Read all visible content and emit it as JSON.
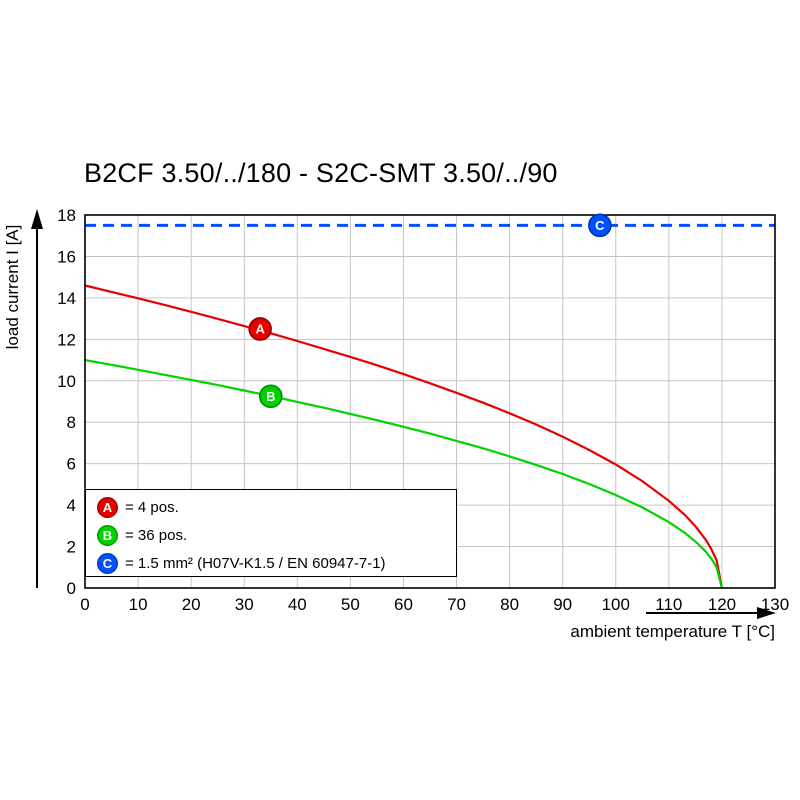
{
  "chart_data": {
    "type": "line",
    "title": "B2CF 3.50/../180 - S2C-SMT 3.50/../90",
    "xlabel": "ambient temperature T [°C]",
    "ylabel": "load current I [A]",
    "xlim": [
      0,
      130
    ],
    "ylim": [
      0,
      18
    ],
    "xtick_step": 10,
    "ytick_step": 2,
    "grid": true,
    "legend_position": "bottom-left",
    "series": [
      {
        "name": "A",
        "description": "4 pos.",
        "color": "#e60000",
        "style": "solid",
        "x": [
          0,
          5,
          10,
          15,
          20,
          25,
          30,
          35,
          40,
          45,
          50,
          55,
          60,
          65,
          70,
          75,
          80,
          85,
          90,
          95,
          100,
          105,
          110,
          113,
          115,
          117,
          118,
          119,
          120
        ],
        "y": [
          14.6,
          14.29,
          13.98,
          13.66,
          13.33,
          12.99,
          12.64,
          12.29,
          11.92,
          11.54,
          11.15,
          10.75,
          10.32,
          9.88,
          9.42,
          8.94,
          8.43,
          7.89,
          7.3,
          6.66,
          5.96,
          5.16,
          4.21,
          3.53,
          2.98,
          2.31,
          1.88,
          1.33,
          0
        ],
        "marker": {
          "x": 33,
          "y": 12.5,
          "label": "A"
        }
      },
      {
        "name": "B",
        "description": "36 pos.",
        "color": "#00d400",
        "style": "solid",
        "x": [
          0,
          5,
          10,
          15,
          20,
          25,
          30,
          35,
          40,
          45,
          50,
          55,
          60,
          65,
          70,
          75,
          80,
          85,
          90,
          95,
          100,
          105,
          110,
          113,
          115,
          117,
          118,
          119,
          120
        ],
        "y": [
          11,
          10.77,
          10.53,
          10.29,
          10.04,
          9.79,
          9.53,
          9.26,
          8.98,
          8.7,
          8.4,
          8.1,
          7.78,
          7.45,
          7.1,
          6.74,
          6.35,
          5.94,
          5.5,
          5.02,
          4.49,
          3.89,
          3.18,
          2.66,
          2.25,
          1.74,
          1.42,
          1,
          0
        ],
        "marker": {
          "x": 35,
          "y": 9.25,
          "label": "B"
        }
      },
      {
        "name": "C",
        "description": "1.5 mm² (H07V-K1.5 / EN 60947-7-1)",
        "color": "#0050ff",
        "style": "dashed",
        "x": [
          0,
          130
        ],
        "y": [
          17.5,
          17.5
        ],
        "marker": {
          "x": 97,
          "y": 17.5,
          "label": "C"
        }
      }
    ],
    "legend": [
      {
        "label": "A",
        "color": "#e60000",
        "text": "= 4 pos."
      },
      {
        "label": "B",
        "color": "#00d400",
        "text": "= 36 pos."
      },
      {
        "label": "C",
        "color": "#0050ff",
        "text": "= 1.5 mm² (H07V-K1.5 / EN 60947-7-1)"
      }
    ]
  }
}
